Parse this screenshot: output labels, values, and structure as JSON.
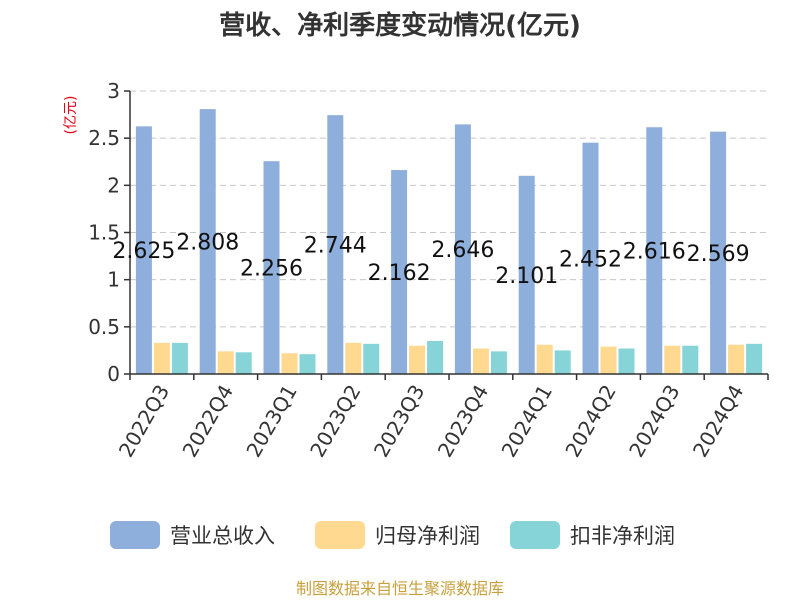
{
  "chart_data": {
    "type": "bar",
    "title": "营收、净利季度变动情况(亿元)",
    "ylabel": "(亿元)",
    "ylim": [
      0,
      3
    ],
    "yticks": [
      "0",
      "0.5",
      "1",
      "1.5",
      "2",
      "2.5",
      "3"
    ],
    "grid": true,
    "legend_position": "bottom",
    "categories": [
      "2022Q3",
      "2022Q4",
      "2023Q1",
      "2023Q2",
      "2023Q3",
      "2023Q4",
      "2024Q1",
      "2024Q2",
      "2024Q3",
      "2024Q4"
    ],
    "series": [
      {
        "name": "营业总收入",
        "color": "#8eaedb",
        "values": [
          2.625,
          2.808,
          2.256,
          2.744,
          2.162,
          2.646,
          2.101,
          2.452,
          2.616,
          2.569
        ],
        "labels": [
          "2.625",
          "2.808",
          "2.256",
          "2.744",
          "2.162",
          "2.646",
          "2.101",
          "2.452",
          "2.616",
          "2.569"
        ]
      },
      {
        "name": "归母净利润",
        "color": "#ffd98f",
        "values": [
          0.33,
          0.24,
          0.22,
          0.33,
          0.3,
          0.27,
          0.31,
          0.29,
          0.3,
          0.31
        ]
      },
      {
        "name": "扣非净利润",
        "color": "#86d4d7",
        "values": [
          0.33,
          0.23,
          0.21,
          0.32,
          0.35,
          0.24,
          0.25,
          0.27,
          0.3,
          0.32
        ]
      }
    ]
  },
  "source": "制图数据来自恒生聚源数据库"
}
